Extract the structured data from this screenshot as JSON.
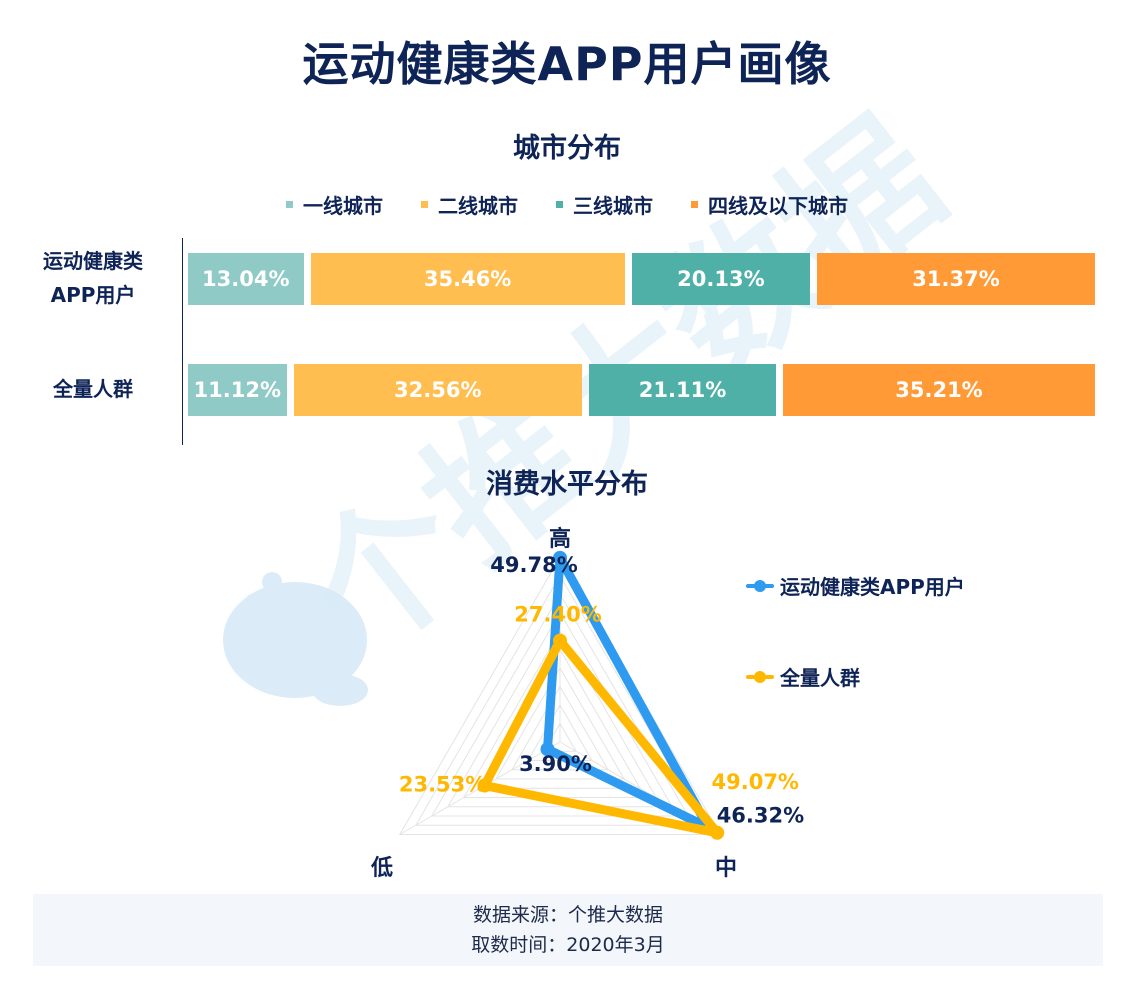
{
  "header": {
    "title": "运动健康类APP用户画像"
  },
  "city": {
    "title": "城市分布",
    "legend": [
      {
        "label": "一线城市",
        "color": "#8fcac7"
      },
      {
        "label": "二线城市",
        "color": "#ffbe4f"
      },
      {
        "label": "三线城市",
        "color": "#4fb0a8"
      },
      {
        "label": "四线及以下城市",
        "color": "#ff9a36"
      }
    ],
    "rows": [
      {
        "label_line1": "运动健康类",
        "label_line2": "APP用户",
        "segments": [
          {
            "value": 13.04,
            "text": "13.04%"
          },
          {
            "value": 35.46,
            "text": "35.46%"
          },
          {
            "value": 20.13,
            "text": "20.13%"
          },
          {
            "value": 31.37,
            "text": "31.37%"
          }
        ]
      },
      {
        "label_line1": "全量人群",
        "label_line2": "",
        "segments": [
          {
            "value": 11.12,
            "text": "11.12%"
          },
          {
            "value": 32.56,
            "text": "32.56%"
          },
          {
            "value": 21.11,
            "text": "21.11%"
          },
          {
            "value": 35.21,
            "text": "35.21%"
          }
        ]
      }
    ]
  },
  "consume": {
    "title": "消费水平分布",
    "axes": [
      "高",
      "中",
      "低"
    ],
    "series": [
      {
        "name": "运动健康类APP用户",
        "color": "#2e9bf0",
        "label_color": "#0f2456",
        "values": [
          49.78,
          46.32,
          3.9
        ],
        "labels": [
          "49.78%",
          "46.32%",
          "3.90%"
        ]
      },
      {
        "name": "全量人群",
        "color": "#ffb800",
        "label_color": "#ffb800",
        "values": [
          27.4,
          49.07,
          23.53
        ],
        "labels": [
          "27.40%",
          "49.07%",
          "23.53%"
        ]
      }
    ],
    "max": 50
  },
  "chart_data": [
    {
      "type": "bar",
      "title": "城市分布",
      "stacked": true,
      "orientation": "horizontal",
      "categories": [
        "运动健康类APP用户",
        "全量人群"
      ],
      "series": [
        {
          "name": "一线城市",
          "values": [
            13.04,
            11.12
          ]
        },
        {
          "name": "二线城市",
          "values": [
            35.46,
            32.56
          ]
        },
        {
          "name": "三线城市",
          "values": [
            20.13,
            21.11
          ]
        },
        {
          "name": "四线及以下城市",
          "values": [
            31.37,
            35.21
          ]
        }
      ],
      "legend": "top"
    },
    {
      "type": "radar",
      "title": "消费水平分布",
      "categories": [
        "高",
        "中",
        "低"
      ],
      "series": [
        {
          "name": "运动健康类APP用户",
          "values": [
            49.78,
            46.32,
            3.9
          ]
        },
        {
          "name": "全量人群",
          "values": [
            27.4,
            49.07,
            23.53
          ]
        }
      ],
      "legend": "right"
    }
  ],
  "watermark": {
    "text": "个推大数据"
  },
  "footer": {
    "source": "数据来源：个推大数据",
    "time": "取数时间：2020年3月"
  }
}
